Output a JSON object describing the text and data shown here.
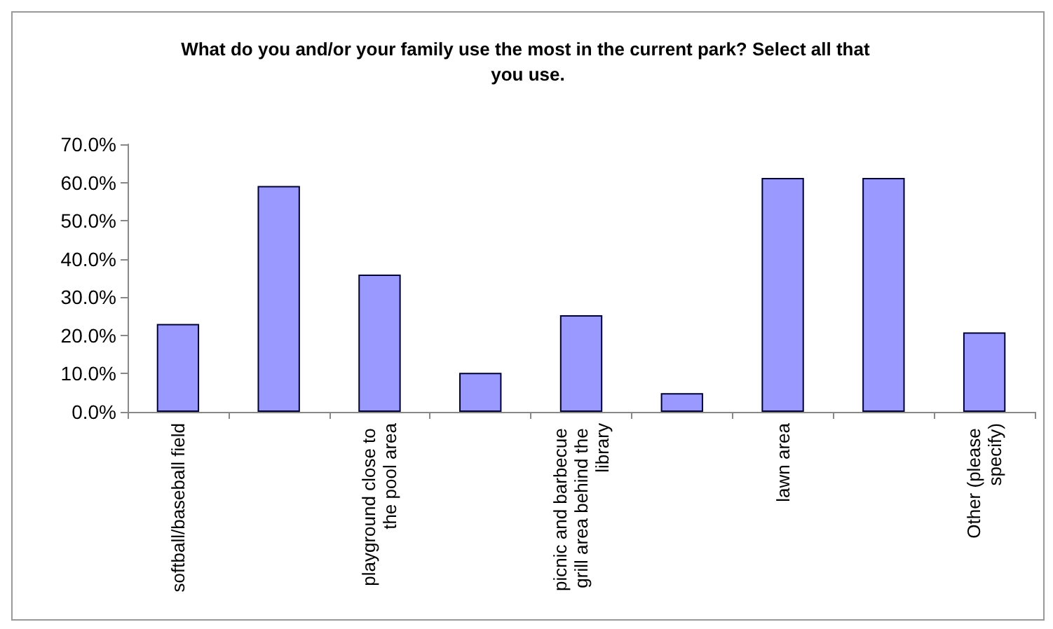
{
  "chart_data": {
    "type": "bar",
    "title": "What do you and/or your family use the most in the current park? Select all that you use.",
    "categories": [
      "softball/baseball field",
      null,
      "playground close to the pool area",
      null,
      "picnic and barbecue grill area behind the library",
      null,
      "lawn area",
      null,
      "Other (please specify)"
    ],
    "values": [
      23.0,
      59.1,
      35.9,
      10.2,
      25.3,
      4.9,
      61.2,
      61.2,
      20.8
    ],
    "color": "#9999ff",
    "ylim": [
      0,
      70
    ],
    "yticks": [
      {
        "value": 0,
        "label": "0.0%"
      },
      {
        "value": 10,
        "label": "10.0%"
      },
      {
        "value": 20,
        "label": "20.0%"
      },
      {
        "value": 30,
        "label": "30.0%"
      },
      {
        "value": 40,
        "label": "40.0%"
      },
      {
        "value": 50,
        "label": "50.0%"
      },
      {
        "value": 60,
        "label": "60.0%"
      },
      {
        "value": 70,
        "label": "70.0%"
      }
    ],
    "grid": false
  }
}
